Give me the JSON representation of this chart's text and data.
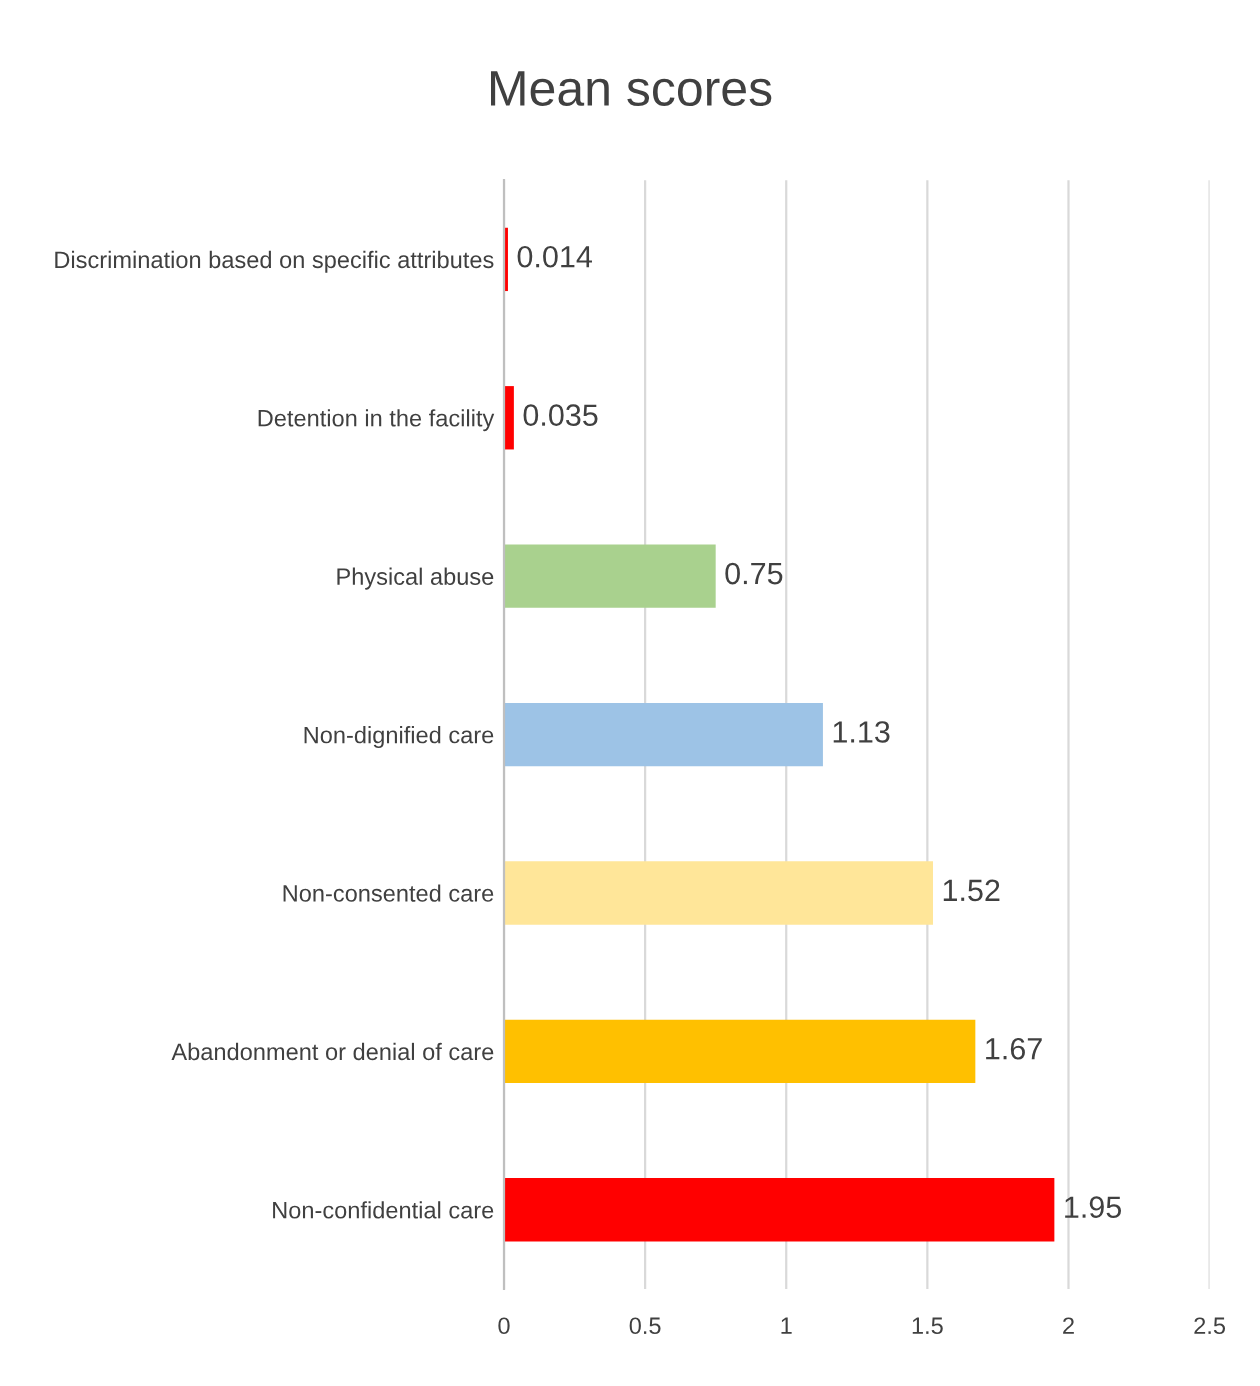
{
  "chart_data": {
    "type": "bar",
    "orientation": "horizontal",
    "title": "Mean scores",
    "categories": [
      "Discrimination based on specific attributes",
      "Detention in the facility",
      "Physical abuse",
      "Non-dignified care",
      "Non-consented care",
      "Abandonment or denial of care",
      "Non-confidential care"
    ],
    "values": [
      0.014,
      0.035,
      0.75,
      1.13,
      1.52,
      1.67,
      1.95
    ],
    "colors": [
      "#ff0000",
      "#ff0000",
      "#a9d18e",
      "#9dc3e6",
      "#ffe699",
      "#ffc000",
      "#ff0000"
    ],
    "xlim": [
      0,
      2.5
    ],
    "xticks": [
      0,
      0.5,
      1,
      1.5,
      2,
      2.5
    ],
    "grid": "x",
    "data_labels": true,
    "legend": false
  }
}
